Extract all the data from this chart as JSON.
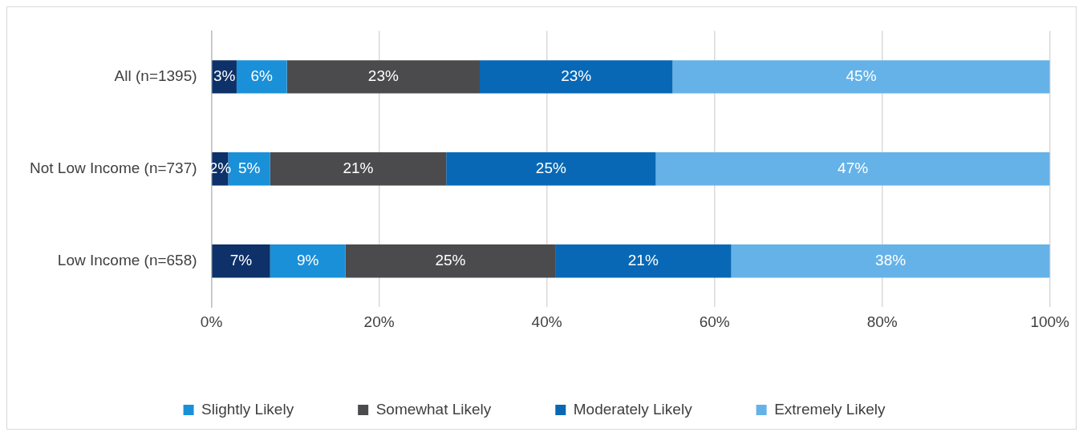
{
  "chart_data": {
    "type": "bar",
    "orientation": "horizontal",
    "stacked": true,
    "categories": [
      "All (n=1395)",
      "Not Low Income (n=737)",
      "Low Income (n=658)"
    ],
    "series": [
      {
        "color": "#0d3168",
        "values": [
          3,
          2,
          7
        ],
        "value_labels": [
          "3%",
          "2%",
          "7%"
        ]
      },
      {
        "name": "Slightly Likely",
        "color": "#1a90d8",
        "values": [
          6,
          5,
          9
        ],
        "value_labels": [
          "6%",
          "5%",
          "9%"
        ]
      },
      {
        "name": "Somewhat Likely",
        "color": "#4b4b4d",
        "values": [
          23,
          21,
          25
        ],
        "value_labels": [
          "23%",
          "21%",
          "25%"
        ]
      },
      {
        "name": "Moderately Likely",
        "color": "#0868b5",
        "values": [
          23,
          25,
          21
        ],
        "value_labels": [
          "23%",
          "25%",
          "21%"
        ]
      },
      {
        "name": "Extremely Likely",
        "color": "#64b2e8",
        "values": [
          45,
          47,
          38
        ],
        "value_labels": [
          "45%",
          "47%",
          "38%"
        ]
      }
    ],
    "xlim": [
      0,
      100
    ],
    "xticks": [
      {
        "value": 0,
        "label": "0%"
      },
      {
        "value": 20,
        "label": "20%"
      },
      {
        "value": 40,
        "label": "40%"
      },
      {
        "value": 60,
        "label": "60%"
      },
      {
        "value": 80,
        "label": "80%"
      },
      {
        "value": 100,
        "label": "100%"
      }
    ],
    "grid": "x",
    "legend": "bottom"
  }
}
